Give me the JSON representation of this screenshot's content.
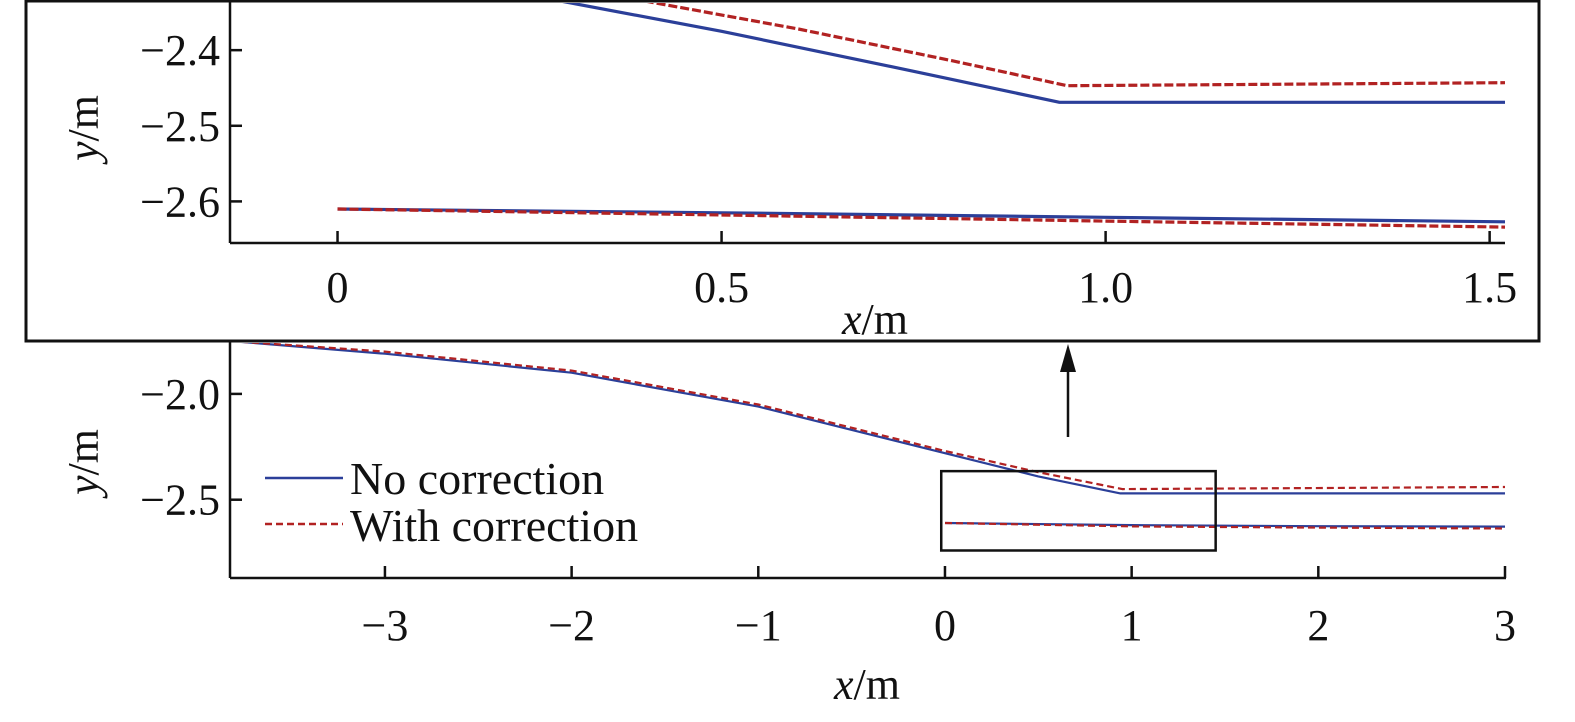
{
  "chart_data": [
    {
      "id": "inset",
      "type": "line",
      "description": "Magnified view of boxed region",
      "xlabel": "x/m",
      "ylabel": "y/m",
      "xlim": [
        -0.14,
        1.52
      ],
      "ylim": [
        -2.655,
        -2.335
      ],
      "xticks": [
        0,
        0.5,
        1.0,
        1.5
      ],
      "xtick_labels": [
        "0",
        "0.5",
        "1.0",
        "1.5"
      ],
      "yticks": [
        -2.4,
        -2.5,
        -2.6
      ],
      "ytick_labels": [
        "−2.4",
        "−2.5",
        "−2.6"
      ],
      "series": [
        {
          "name": "No correction",
          "segments": [
            {
              "x": [
                0.29,
                0.5,
                0.75,
                0.94,
                1.52
              ],
              "y": [
                -2.335,
                -2.375,
                -2.428,
                -2.469,
                -2.469
              ]
            },
            {
              "x": [
                0.0,
                0.5,
                1.0,
                1.52
              ],
              "y": [
                -2.61,
                -2.615,
                -2.621,
                -2.627
              ]
            }
          ]
        },
        {
          "name": "With correction",
          "segments": [
            {
              "x": [
                0.4,
                0.6,
                0.8,
                0.95,
                1.52
              ],
              "y": [
                -2.335,
                -2.372,
                -2.414,
                -2.447,
                -2.443
              ]
            },
            {
              "x": [
                0.0,
                0.5,
                1.0,
                1.52
              ],
              "y": [
                -2.61,
                -2.618,
                -2.626,
                -2.634
              ]
            }
          ]
        }
      ]
    },
    {
      "id": "main",
      "type": "line",
      "xlabel": "x/m",
      "ylabel": "y/m",
      "xlim": [
        -3.83,
        3.0
      ],
      "ylim": [
        -2.87,
        -1.75
      ],
      "xticks": [
        -3,
        -2,
        -1,
        0,
        1,
        2,
        3
      ],
      "xtick_labels": [
        "−3",
        "−2",
        "−1",
        "0",
        "1",
        "2",
        "3"
      ],
      "yticks": [
        -2.0,
        -2.5
      ],
      "ytick_labels": [
        "−2.0",
        "−2.5"
      ],
      "legend": {
        "position": "center-left",
        "entries": [
          "No correction",
          "With correction"
        ]
      },
      "zoom_box": {
        "x": [
          -0.02,
          1.45
        ],
        "y": [
          -2.365,
          -2.74
        ]
      },
      "series": [
        {
          "name": "No correction",
          "segments": [
            {
              "x": [
                -3.83,
                -3.0,
                -2.0,
                -1.0,
                0.0,
                0.5,
                0.94,
                3.0
              ],
              "y": [
                -1.75,
                -1.81,
                -1.9,
                -2.06,
                -2.28,
                -2.39,
                -2.47,
                -2.47
              ]
            },
            {
              "x": [
                0.0,
                1.0,
                2.0,
                3.0
              ],
              "y": [
                -2.61,
                -2.62,
                -2.625,
                -2.627
              ]
            }
          ]
        },
        {
          "name": "With correction",
          "segments": [
            {
              "x": [
                -3.83,
                -3.0,
                -2.0,
                -1.0,
                0.0,
                0.5,
                0.95,
                3.0
              ],
              "y": [
                -1.75,
                -1.8,
                -1.89,
                -2.05,
                -2.27,
                -2.37,
                -2.45,
                -2.44
              ]
            },
            {
              "x": [
                0.0,
                1.0,
                2.0,
                3.0
              ],
              "y": [
                -2.61,
                -2.626,
                -2.632,
                -2.636
              ]
            }
          ]
        }
      ]
    }
  ],
  "colors": {
    "no_correction": "#2b3f99",
    "with_correction": "#b22222",
    "axis": "#111111"
  }
}
